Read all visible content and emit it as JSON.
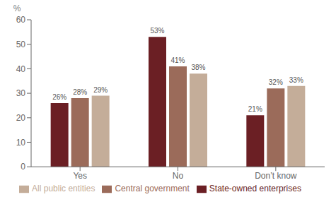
{
  "chart_data": {
    "type": "bar",
    "y_label": "%",
    "categories": [
      "Yes",
      "No",
      "Don’t know"
    ],
    "series": [
      {
        "name": "State-owned enterprises",
        "color": "#6B1F24",
        "values": [
          26,
          53,
          21
        ],
        "value_labels": [
          "26%",
          "53%",
          "21%"
        ]
      },
      {
        "name": "Central government",
        "color": "#9B6B5A",
        "values": [
          28,
          41,
          32
        ],
        "value_labels": [
          "28%",
          "41%",
          "32%"
        ]
      },
      {
        "name": "All public entities",
        "color": "#C4AD99",
        "values": [
          29,
          38,
          33
        ],
        "value_labels": [
          "29%",
          "38%",
          "33%"
        ]
      }
    ],
    "ylim": [
      0,
      60
    ],
    "yticks": [
      0,
      10,
      20,
      30,
      40,
      50,
      60
    ],
    "grid": false,
    "legend": "bottom",
    "data_labels": true
  }
}
